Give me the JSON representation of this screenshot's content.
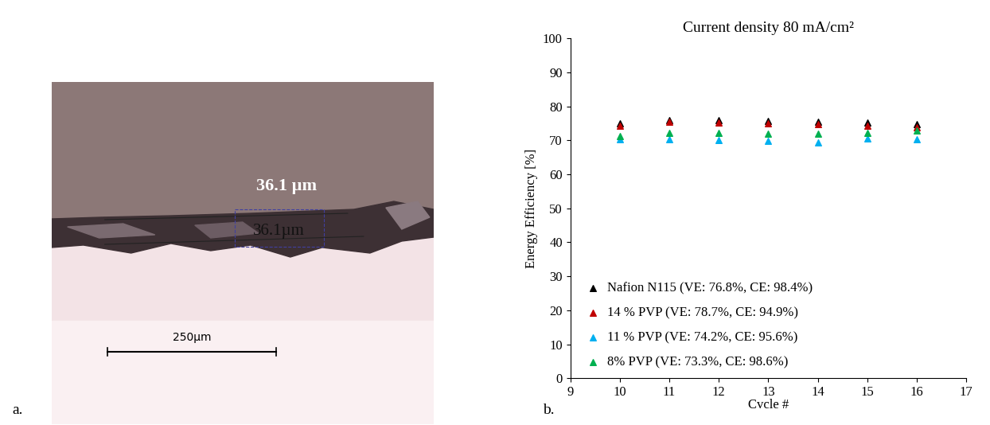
{
  "image_panel": {
    "panel_label": "a.",
    "measurement": "36.1 µm",
    "measurement_overlay": "36.1µm",
    "scale_bar": "250µm"
  },
  "chart_data": {
    "type": "scatter",
    "panel_label": "b.",
    "title": "Current density 80 mA/cm²",
    "x_label": "Cvcle #",
    "y_label": "Energy Efficiency [%]",
    "x": [
      10,
      11,
      12,
      13,
      14,
      15,
      16
    ],
    "series": [
      {
        "name": "Nafion N115 (VE: 76.8%, CE: 98.4%)",
        "color": "#000000",
        "marker": "triangle",
        "values": [
          74.9,
          75.9,
          75.8,
          75.6,
          75.5,
          75.1,
          74.7
        ]
      },
      {
        "name": "14 % PVP (VE: 78.7%, CE: 94.9%)",
        "color": "#c00000",
        "marker": "triangle",
        "values": [
          74.2,
          75.4,
          75.3,
          75.0,
          74.8,
          74.2,
          73.8
        ]
      },
      {
        "name": "11 % PVP (VE: 74.2%, CE: 95.6%)",
        "color": "#00b0f0",
        "marker": "triangle",
        "values": [
          70.4,
          70.3,
          70.0,
          69.8,
          69.3,
          70.6,
          70.3
        ]
      },
      {
        "name": "8% PVP (VE: 73.3%, CE: 98.6%)",
        "color": "#00b050",
        "marker": "triangle",
        "values": [
          71.2,
          72.2,
          72.1,
          72.0,
          72.0,
          72.2,
          72.8
        ]
      }
    ],
    "xlim": [
      9,
      17
    ],
    "xticks": [
      9,
      10,
      11,
      12,
      13,
      14,
      15,
      16,
      17
    ],
    "ylim": [
      0,
      100
    ],
    "yticks": [
      0,
      10,
      20,
      30,
      40,
      50,
      60,
      70,
      80,
      90,
      100
    ],
    "grid": false,
    "legend": "lower left"
  }
}
